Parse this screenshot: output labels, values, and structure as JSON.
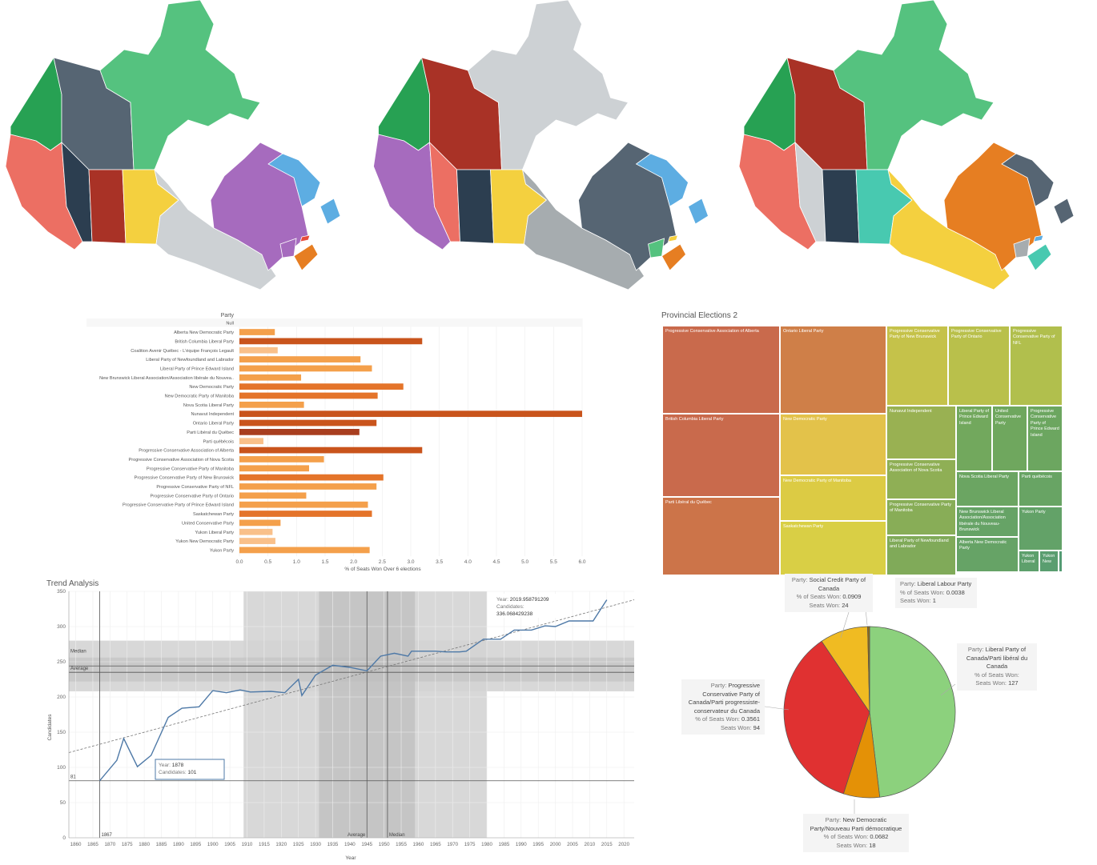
{
  "maps": [
    {
      "regions": [
        {
          "name": "Yukon",
          "color": "#27a153"
        },
        {
          "name": "Northwest Territories",
          "color": "#566573"
        },
        {
          "name": "Nunavut",
          "color": "#55c27f"
        },
        {
          "name": "British Columbia",
          "color": "#ec6f63"
        },
        {
          "name": "Alberta",
          "color": "#2c3e50"
        },
        {
          "name": "Saskatchewan",
          "color": "#a93226"
        },
        {
          "name": "Manitoba",
          "color": "#f4d03f"
        },
        {
          "name": "Ontario",
          "color": "#cdd1d4"
        },
        {
          "name": "Quebec",
          "color": "#a66bbe"
        },
        {
          "name": "Newfoundland and Labrador",
          "color": "#5dade2"
        },
        {
          "name": "Nova Scotia",
          "color": "#e67e22"
        },
        {
          "name": "New Brunswick",
          "color": "#a66bbe"
        },
        {
          "name": "Prince Edward Island",
          "color": "#e74c3c"
        }
      ]
    },
    {
      "regions": [
        {
          "name": "Yukon",
          "color": "#27a153"
        },
        {
          "name": "Northwest Territories",
          "color": "#a93226"
        },
        {
          "name": "Nunavut",
          "color": "#cdd1d4"
        },
        {
          "name": "British Columbia",
          "color": "#a66bbe"
        },
        {
          "name": "Alberta",
          "color": "#ec6f63"
        },
        {
          "name": "Saskatchewan",
          "color": "#2c3e50"
        },
        {
          "name": "Manitoba",
          "color": "#f4d03f"
        },
        {
          "name": "Ontario",
          "color": "#a6acaf"
        },
        {
          "name": "Quebec",
          "color": "#566573"
        },
        {
          "name": "Newfoundland and Labrador",
          "color": "#5dade2"
        },
        {
          "name": "Nova Scotia",
          "color": "#e67e22"
        },
        {
          "name": "New Brunswick",
          "color": "#55c27f"
        },
        {
          "name": "Prince Edward Island",
          "color": "#f4d03f"
        }
      ]
    },
    {
      "regions": [
        {
          "name": "Yukon",
          "color": "#27a153"
        },
        {
          "name": "Northwest Territories",
          "color": "#a93226"
        },
        {
          "name": "Nunavut",
          "color": "#55c27f"
        },
        {
          "name": "British Columbia",
          "color": "#ec6f63"
        },
        {
          "name": "Alberta",
          "color": "#cdd1d4"
        },
        {
          "name": "Saskatchewan",
          "color": "#2c3e50"
        },
        {
          "name": "Manitoba",
          "color": "#48c9b0"
        },
        {
          "name": "Ontario",
          "color": "#f4d03f"
        },
        {
          "name": "Quebec",
          "color": "#e67e22"
        },
        {
          "name": "Newfoundland and Labrador",
          "color": "#566573"
        },
        {
          "name": "Nova Scotia",
          "color": "#48c9b0"
        },
        {
          "name": "New Brunswick",
          "color": "#a6acaf"
        },
        {
          "name": "Prince Edward Island",
          "color": "#5dade2"
        }
      ]
    }
  ],
  "chart_data": [
    {
      "type": "bar",
      "orientation": "horizontal",
      "row_header": "Party",
      "xlabel": "% of Seats Won Over 6 elections",
      "xlim": [
        0,
        6
      ],
      "xticks": [
        "0.0",
        "0.5",
        "1.0",
        "1.5",
        "2.0",
        "2.5",
        "3.0",
        "3.5",
        "4.0",
        "4.5",
        "5.0",
        "5.5",
        "6.0"
      ],
      "grid": true,
      "categories": [
        "Null",
        "Alberta New Democratic Party",
        "British Columbia Liberal Party",
        "Coalition Avenir Québec - L'équipe François Legault",
        "Liberal Party of Newfoundland and Labrador",
        "Liberal Party of Prince Edward Island",
        "New Brunswick Liberal Association/Association libérale du Nouvea..",
        "New Democratic Party",
        "New Democratic Party of Manitoba",
        "Nova Scotia Liberal Party",
        "Nunavut Independent",
        "Ontario Liberal Party",
        "Parti Libéral du Québec",
        "Parti québécois",
        "Progressive Conservative Association of Alberta",
        "Progressive Conservative Association of Nova Scotia",
        "Progressive Conservative Party of Manitoba",
        "Progressive Conservative Party of New Brunswick",
        "Progressive Conservative Party of NFL",
        "Progressive Conservative Party of Ontario",
        "Progressive Conservative Party of Prince Edward Island",
        "Saskatchewan Party",
        "United Conservative Party",
        "Yukon Liberal Party",
        "Yukon New Democratic Party",
        "Yukon Party"
      ],
      "values": [
        null,
        0.62,
        3.2,
        0.67,
        2.12,
        2.32,
        1.08,
        2.87,
        2.42,
        1.13,
        6.0,
        2.4,
        2.1,
        0.42,
        3.2,
        1.48,
        1.22,
        2.52,
        2.4,
        1.17,
        2.25,
        2.32,
        0.72,
        0.58,
        0.63,
        2.28
      ],
      "colors": [
        "#f7f7f7",
        "#f4a04b",
        "#c9541c",
        "#f9c08a",
        "#f4a04b",
        "#f4a04b",
        "#f4a04b",
        "#e4742a",
        "#e4742a",
        "#f4a04b",
        "#c9541c",
        "#c9541c",
        "#a83e1f",
        "#f9c08a",
        "#c9541c",
        "#f4a04b",
        "#f4a04b",
        "#e4742a",
        "#f4a04b",
        "#f4a04b",
        "#f4a04b",
        "#e4742a",
        "#f4a04b",
        "#f9c08a",
        "#f9c08a",
        "#f4a04b"
      ]
    },
    {
      "type": "treemap",
      "title": "Provincial Elections 2",
      "items": [
        {
          "label": "Progressive Conservative Association of Alberta",
          "color": "#c96a4c"
        },
        {
          "label": "British Columbia Liberal Party",
          "color": "#c96a4c"
        },
        {
          "label": "Parti Libéral du Québec",
          "color": "#cc7449"
        },
        {
          "label": "Ontario Liberal Party",
          "color": "#cf7f48"
        },
        {
          "label": "New Democratic Party",
          "color": "#e3c24a"
        },
        {
          "label": "New Democratic Party of Manitoba",
          "color": "#dccb44"
        },
        {
          "label": "Saskatchewan Party",
          "color": "#d9cf45"
        },
        {
          "label": "Progressive Conservative Party of New Brunswick",
          "color": "#c5c24a"
        },
        {
          "label": "Progressive Conservative Party of Ontario",
          "color": "#b9c04b"
        },
        {
          "label": "Progressive Conservative Party of NFL",
          "color": "#b1bf4d"
        },
        {
          "label": "Nunavut Independent",
          "color": "#99b152"
        },
        {
          "label": "Progressive Conservative Association of Nova Scotia",
          "color": "#8faf55"
        },
        {
          "label": "Progressive Conservative Party of Manitoba",
          "color": "#88ad57"
        },
        {
          "label": "Liberal Party of Newfoundland and Labrador",
          "color": "#80aa59"
        },
        {
          "label": "Liberal Party of Prince Edward Island",
          "color": "#72a85d"
        },
        {
          "label": "United Conservative Party",
          "color": "#6fa75e"
        },
        {
          "label": "Progressive Conservative Party of Prince Edward Island",
          "color": "#6ca660"
        },
        {
          "label": "Nova Scotia Liberal Party",
          "color": "#6ba562"
        },
        {
          "label": "Parti québécois",
          "color": "#68a464"
        },
        {
          "label": "New Brunswick Liberal Association/Association libérale du Nouveau-Brunswick",
          "color": "#66a366"
        },
        {
          "label": "Yukon Party",
          "color": "#63a268"
        },
        {
          "label": "Alberta New Democratic Party",
          "color": "#66a366"
        },
        {
          "label": "Yukon Liberal",
          "color": "#5ea06c"
        },
        {
          "label": "Yukon New",
          "color": "#5a9e70"
        },
        {
          "label": "",
          "color": "#549c74"
        }
      ]
    },
    {
      "type": "line",
      "title": "Trend Analysis",
      "xlabel": "Year",
      "ylabel": "Candidates",
      "xlim": [
        1858,
        2023
      ],
      "ylim": [
        0,
        350
      ],
      "xticks": [
        1860,
        1865,
        1870,
        1875,
        1880,
        1885,
        1890,
        1895,
        1900,
        1905,
        1910,
        1915,
        1920,
        1925,
        1930,
        1935,
        1940,
        1945,
        1950,
        1955,
        1960,
        1965,
        1970,
        1975,
        1980,
        1985,
        1990,
        1995,
        2000,
        2005,
        2010,
        2015,
        2020
      ],
      "yticks": [
        0,
        50,
        100,
        150,
        200,
        250,
        300,
        350
      ],
      "grid": true,
      "x": [
        1867,
        1872,
        1874,
        1878,
        1882,
        1887,
        1891,
        1896,
        1900,
        1904,
        1908,
        1911,
        1917,
        1921,
        1925,
        1926,
        1930,
        1935,
        1940,
        1945,
        1949,
        1953,
        1957,
        1958,
        1962,
        1963,
        1965,
        1968,
        1972,
        1974,
        1979,
        1980,
        1984,
        1988,
        1993,
        1997,
        2000,
        2004,
        2006,
        2008,
        2011,
        2015
      ],
      "y": [
        81,
        110,
        141,
        101,
        117,
        171,
        184,
        186,
        209,
        206,
        210,
        207,
        208,
        206,
        225,
        202,
        231,
        245,
        242,
        237,
        258,
        262,
        258,
        265,
        265,
        265,
        265,
        264,
        264,
        265,
        282,
        282,
        282,
        295,
        295,
        301,
        300,
        308,
        308,
        308,
        308,
        338
      ],
      "reference_lines": {
        "x_average": 1945,
        "x_median": 1951,
        "x_start_label": "1867",
        "y_average": 235,
        "y_median": 244,
        "y_constant": 81,
        "x_band_outer": [
          1909,
          1980
        ],
        "x_band_inner": [
          1931,
          1959
        ],
        "y_band_outer": [
          208,
          280
        ],
        "y_band_inner": [
          222,
          256
        ]
      },
      "trend_line": {
        "x0": 1858,
        "y0": 121,
        "x1": 2023,
        "y1": 338
      },
      "labels": {
        "average": "Average",
        "median": "Median",
        "constant": "81",
        "start": "1867",
        "x_average": "Average",
        "x_median": "Median"
      },
      "tooltip_hover": {
        "label_year": "Year:",
        "year": "1878",
        "label_candidates": "Candidates:",
        "candidates": "101"
      },
      "tooltip_trend": {
        "label_year": "Year:",
        "year": "2019.958791209",
        "label_candidates": "Candidates:",
        "candidates": "336.068429238"
      }
    },
    {
      "type": "pie",
      "slices": [
        {
          "party": "Liberal Party of Canada/Parti libéral du Canada",
          "share": 0.4811,
          "seats": 127,
          "color": "#8cd17d"
        },
        {
          "party": "New Democratic Party/Nouveau Parti démocratique",
          "share": 0.0682,
          "seats": 18,
          "color": "#e49106"
        },
        {
          "party": "Progressive Conservative Party of Canada/Parti progressiste-conservateur du Canada",
          "share": 0.3561,
          "seats": 94,
          "color": "#e03131"
        },
        {
          "party": "Social Credit Party of Canada",
          "share": 0.0909,
          "seats": 24,
          "color": "#f0bb22"
        },
        {
          "party": "Liberal Labour Party",
          "share": 0.0038,
          "seats": 1,
          "color": "#8f6a1a"
        }
      ],
      "tooltips": [
        {
          "party_label": "Party:",
          "party": "Social Credit Party of Canada",
          "share_label": "% of Seats Won:",
          "share": "0.0909",
          "seats_label": "Seats Won:",
          "seats": "24"
        },
        {
          "party_label": "Party:",
          "party": "Liberal Labour Party",
          "share_label": "% of Seats Won:",
          "share": "0.0038",
          "seats_label": "Seats Won:",
          "seats": "1"
        },
        {
          "party_label": "Party:",
          "party": "Liberal Party of Canada/Parti libéral du Canada",
          "share_label": "% of Seats Won:",
          "share": "",
          "seats_label": "Seats Won:",
          "seats": "127"
        },
        {
          "party_label": "Party:",
          "party": "Progressive Conservative Party of Canada/Parti progressiste-conservateur du Canada",
          "share_label": "% of Seats Won:",
          "share": "0.3561",
          "seats_label": "Seats Won:",
          "seats": "94"
        },
        {
          "party_label": "Party:",
          "party": "New Democratic Party/Nouveau Parti démocratique",
          "share_label": "% of Seats Won:",
          "share": "0.0682",
          "seats_label": "Seats Won:",
          "seats": "18"
        }
      ]
    }
  ]
}
